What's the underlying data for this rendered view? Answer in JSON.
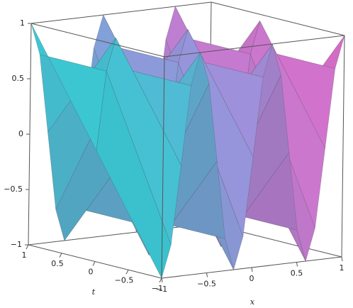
{
  "chart_data": {
    "type": "surface3d",
    "x_label": "x",
    "t_label": "t",
    "x": [
      -1,
      -0.9,
      -0.8,
      -0.7,
      -0.6,
      -0.5,
      -0.4,
      -0.3,
      -0.2,
      -0.1,
      0,
      0.1,
      0.2,
      0.3,
      0.4,
      0.5,
      0.6,
      0.7,
      0.8,
      0.9,
      1
    ],
    "t": [
      -1,
      0,
      1
    ],
    "z": [
      [
        -1,
        -0.71,
        0,
        0.71,
        1,
        0.71,
        0,
        -0.71,
        -1,
        -0.71,
        0,
        0.71,
        1,
        0.71,
        0,
        -0.71,
        -1,
        -0.71,
        0,
        0.71,
        1
      ],
      [
        0,
        0.71,
        1,
        0.71,
        0,
        -0.71,
        -1,
        -0.71,
        0,
        0.71,
        1,
        0.71,
        0,
        -0.71,
        -1,
        -0.71,
        0,
        0.71,
        1,
        0.71,
        0
      ],
      [
        1,
        0.71,
        0,
        -0.71,
        -1,
        -0.71,
        0,
        0.71,
        1,
        0.71,
        0,
        -0.71,
        -1,
        -0.71,
        0,
        0.71,
        1,
        0.71,
        0,
        -0.71,
        -1
      ]
    ],
    "xlim": [
      -1,
      1
    ],
    "tlim": [
      -1,
      1
    ],
    "zlim": [
      -1,
      1
    ],
    "xticks": [
      {
        "value": -1,
        "label": "−1"
      },
      {
        "value": -0.5,
        "label": "−0.5"
      },
      0,
      0.5,
      1
    ],
    "tticks": [
      1,
      0.5,
      0,
      {
        "value": -0.5,
        "label": "−0.5"
      },
      {
        "value": -1,
        "label": "−1"
      }
    ],
    "zticks": [
      {
        "value": -1,
        "label": "−1"
      },
      {
        "value": -0.5,
        "label": "−0.5"
      },
      0,
      0.5,
      1
    ],
    "colors": [
      "#3cdce6",
      "#aaa0f0",
      "#f078dc"
    ]
  }
}
